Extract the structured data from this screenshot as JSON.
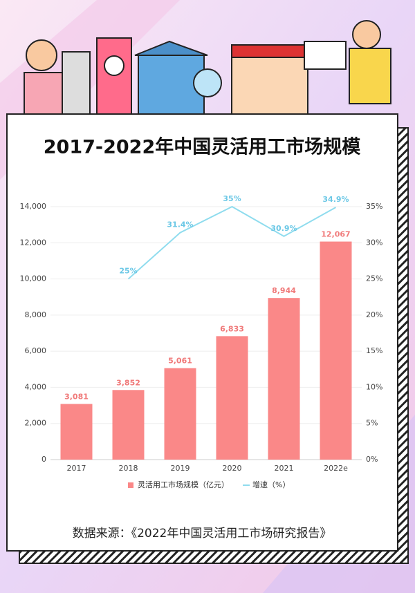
{
  "chart_data": {
    "type": "bar-line",
    "title": "2017-2022年中国灵活用工市场规模",
    "source": "数据来源：《2022年中国灵活用工市场研究报告》",
    "categories": [
      "2017",
      "2018",
      "2019",
      "2020",
      "2021",
      "2022e"
    ],
    "series": [
      {
        "name": "灵活用工市场规模（亿元）",
        "type": "bar",
        "color": "#fa8888",
        "values": [
          3081,
          3852,
          5061,
          6833,
          8944,
          12067
        ],
        "value_labels": [
          "3,081",
          "3,852",
          "5,061",
          "6,833",
          "8,944",
          "12,067"
        ]
      },
      {
        "name": "增速（%）",
        "type": "line",
        "axis": "y2",
        "color": "#8fdcee",
        "values": [
          null,
          25,
          31.4,
          35,
          30.9,
          34.9
        ],
        "value_labels": [
          null,
          "25%",
          "31.4%",
          "35%",
          "30.9%",
          "34.9%"
        ]
      }
    ],
    "ylim": [
      0,
      14000
    ],
    "yticks": [
      0,
      {
        "value": 2000,
        "label": "2,000"
      },
      {
        "value": 4000,
        "label": "4,000"
      },
      {
        "value": 6000,
        "label": "6,000"
      },
      {
        "value": 8000,
        "label": "8,000"
      },
      {
        "value": 10000,
        "label": "10,000"
      },
      {
        "value": 12000,
        "label": "12,000"
      },
      {
        "value": 14000,
        "label": "14,000"
      }
    ],
    "y2lim": [
      0,
      35
    ],
    "y2ticks": [
      {
        "value": 0,
        "label": "0%"
      },
      {
        "value": 5,
        "label": "5%"
      },
      {
        "value": 10,
        "label": "10%"
      },
      {
        "value": 15,
        "label": "15%"
      },
      {
        "value": 20,
        "label": "20%"
      },
      {
        "value": 25,
        "label": "25%"
      },
      {
        "value": 30,
        "label": "30%"
      },
      {
        "value": 35,
        "label": "35%"
      }
    ],
    "grid": true,
    "legend": "bottom"
  }
}
